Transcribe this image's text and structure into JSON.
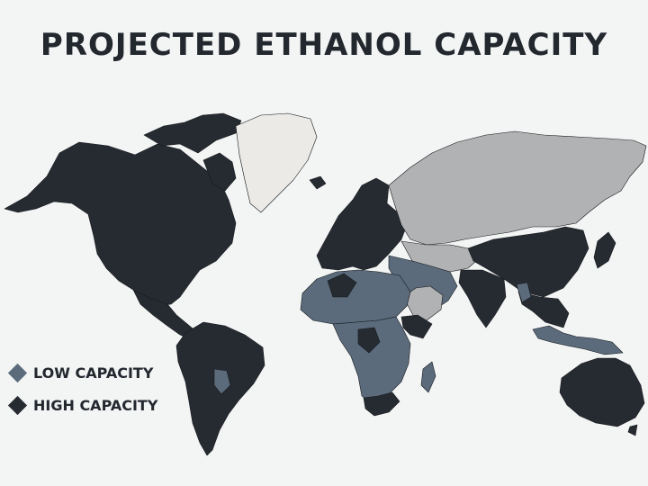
{
  "title": "PROJECTED ETHANOL CAPACITY",
  "colors": {
    "low": "#5b6b7b",
    "high": "#262b32",
    "none": "#b1b2b3",
    "greenland": "#eceae7",
    "background": "#f3f4f4"
  },
  "legend": [
    {
      "key": "low",
      "label": "LOW CAPACITY"
    },
    {
      "key": "high",
      "label": "HIGH CAPACITY"
    }
  ]
}
